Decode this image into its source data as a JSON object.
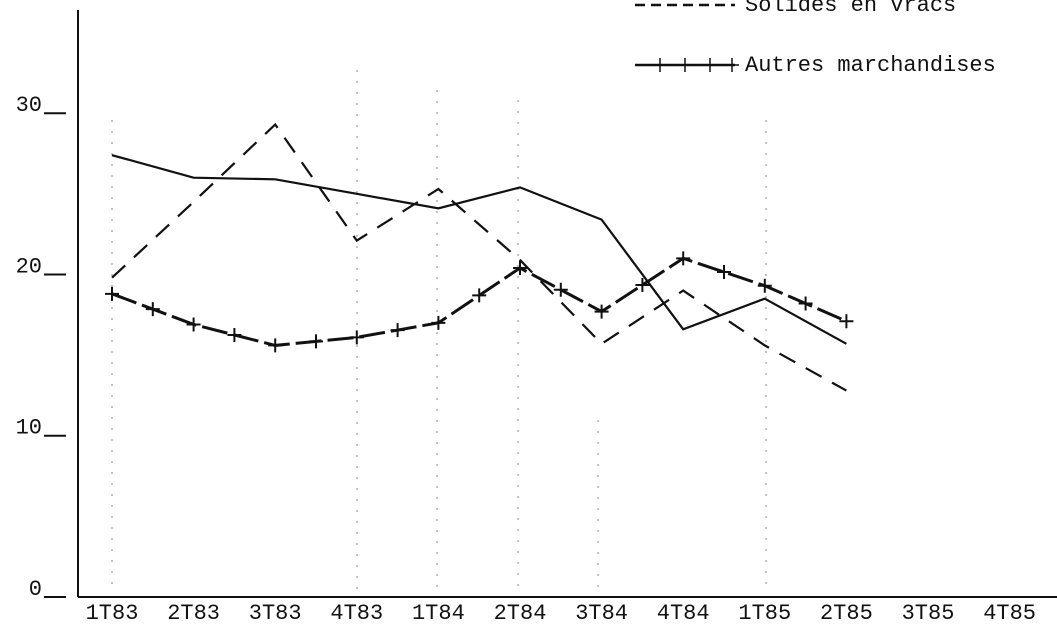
{
  "chart_data": {
    "type": "line",
    "categories": [
      "1T83",
      "2T83",
      "3T83",
      "4T83",
      "1T84",
      "2T84",
      "3T84",
      "4T84",
      "1T85",
      "2T85",
      "3T85",
      "4T85"
    ],
    "series": [
      {
        "style": "solid",
        "color": "#111111",
        "values": [
          27.4,
          26.0,
          25.9,
          25.0,
          24.1,
          25.4,
          23.4,
          16.6,
          18.5,
          15.7,
          null,
          null
        ]
      },
      {
        "name": "Solides en vracs",
        "style": "dashed",
        "color": "#111111",
        "values": [
          19.8,
          24.5,
          29.3,
          22.1,
          25.3,
          20.9,
          15.7,
          19.0,
          15.6,
          12.8,
          null,
          null
        ]
      },
      {
        "name": "Autres marchandises",
        "style": "cross",
        "color": "#111111",
        "values": [
          18.8,
          16.9,
          15.6,
          16.1,
          17.0,
          20.4,
          17.7,
          21.0,
          19.3,
          17.1,
          null,
          null
        ]
      }
    ],
    "ylim": [
      0,
      36.4
    ],
    "yticks": [
      0,
      10,
      20,
      30
    ],
    "legend": "top-right"
  }
}
